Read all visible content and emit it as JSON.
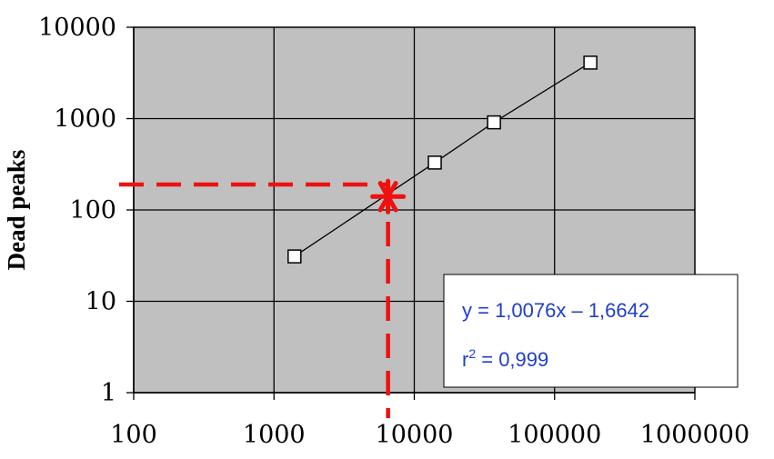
{
  "chart_data": {
    "type": "scatter",
    "title": "",
    "xlabel": "",
    "ylabel": "Dead peaks",
    "xscale": "log",
    "yscale": "log",
    "xlim": [
      100,
      1000000
    ],
    "ylim": [
      1,
      10000
    ],
    "grid": true,
    "plot_background": "#c0c0c0",
    "x_tick_labels": [
      "100",
      "1000",
      "10000",
      "100000",
      "1000000"
    ],
    "y_tick_labels": [
      "1",
      "10",
      "100",
      "1000",
      "10000"
    ],
    "series": [
      {
        "marker": "hollow-square",
        "line_color": "#000000",
        "points": [
          {
            "x": 1400,
            "y": 31
          },
          {
            "x": 14000,
            "y": 330
          },
          {
            "x": 37000,
            "y": 910
          },
          {
            "x": 180000,
            "y": 4100
          }
        ]
      }
    ],
    "highlight_point": {
      "x": 6500,
      "y": 140,
      "marker": "asterisk",
      "color": "#ee1111"
    },
    "reference_lines": {
      "color": "#ee1111",
      "style": "dashed",
      "horizontal_y": 190,
      "vertical_x": 6500
    },
    "annotation": {
      "equation": "y = 1,0076x – 1,6642",
      "r2_prefix": "r",
      "r2_superscript": "2",
      "r2_suffix": " = 0,999",
      "text_color": "#1f3fc8"
    }
  }
}
